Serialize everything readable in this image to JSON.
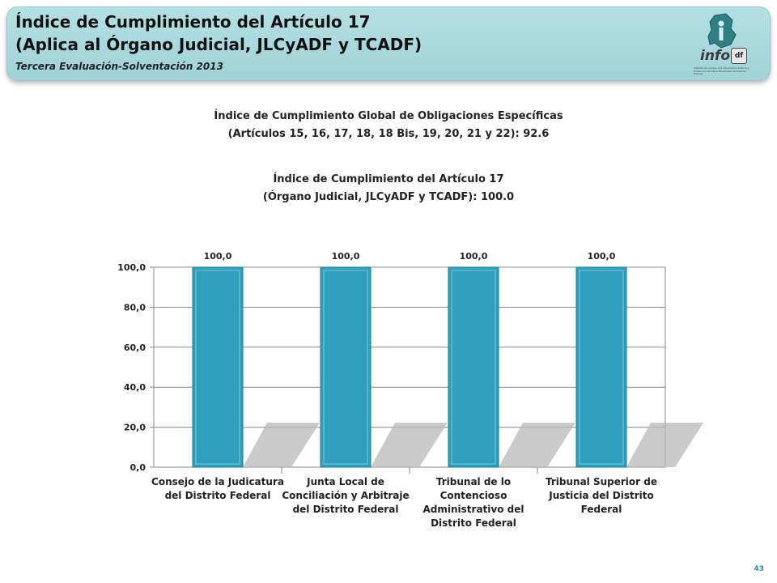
{
  "header": {
    "title_line1": "Índice de Cumplimiento del Artículo 17",
    "title_line2": "(Aplica al Órgano Judicial, JLCyADF y TCADF)",
    "subtitle": "Tercera Evaluación-Solventación 2013",
    "logo_word": "info",
    "logo_df": "df",
    "logo_fine_print": "Instituto de Acceso a la Información Pública y Protección de Datos Personales del Distrito Federal"
  },
  "summary": {
    "global_line1": "Índice de Cumplimiento Global de Obligaciones Específicas",
    "global_line2": "(Artículos 15, 16, 17, 18, 18 Bis, 19, 20, 21 y 22): 92.6",
    "article_line1": "Índice de Cumplimiento del Artículo 17",
    "article_line2": "(Órgano Judicial, JLCyADF y TCADF): 100.0"
  },
  "colors": {
    "bar": "#2e9fbc",
    "bar_dark": "#1e7f98",
    "shadow": "#b8b8b8",
    "grid": "#888888",
    "header_bg": "#a7d8dc"
  },
  "chart_data": {
    "type": "bar",
    "categories": [
      [
        "Consejo de la Judicatura",
        "del Distrito Federal"
      ],
      [
        "Junta Local de",
        "Conciliación y Arbitraje",
        "del Distrito Federal"
      ],
      [
        "Tribunal de lo",
        "Contencioso",
        "Administrativo del",
        "Distrito Federal"
      ],
      [
        "Tribunal Superior de",
        "Justicia del Distrito",
        "Federal"
      ]
    ],
    "values": [
      100.0,
      100.0,
      100.0,
      100.0
    ],
    "data_labels": [
      "100,0",
      "100,0",
      "100,0",
      "100,0"
    ],
    "ytick_labels": [
      "0,0",
      "20,0",
      "40,0",
      "60,0",
      "80,0",
      "100,0"
    ],
    "ytick_values": [
      0,
      20,
      40,
      60,
      80,
      100
    ],
    "ylim": [
      0,
      100
    ],
    "grid": true,
    "legend": "none"
  },
  "footer": {
    "page_number": "43"
  }
}
